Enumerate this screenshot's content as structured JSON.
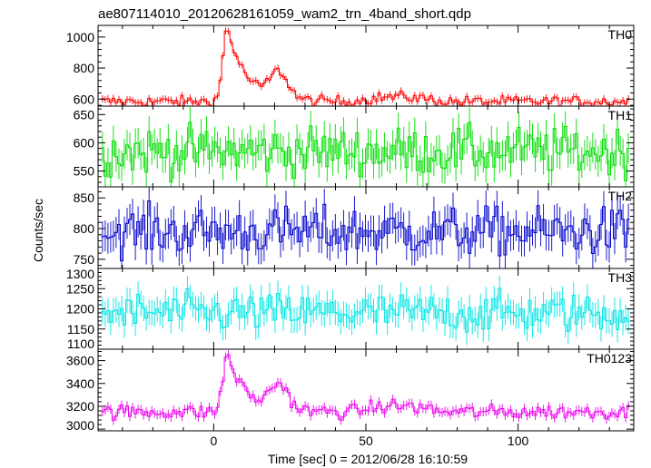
{
  "chart_data": {
    "type": "line",
    "title": "ae807114010_20120628161059_wam2_trn_4band_short.qdp",
    "xlabel": "Time [sec] 0 = 2012/06/28 16:10:59",
    "ylabel": "Counts/sec",
    "xlim": [
      -38,
      138
    ],
    "x_ticks": [
      0,
      50,
      100
    ],
    "x_tick_labels": [
      "0",
      "50",
      "100"
    ],
    "grid": false,
    "panels": [
      {
        "name": "TH0",
        "color": "#ff0000",
        "ylim": [
          555,
          1075
        ],
        "y_ticks": [
          600,
          800,
          1000
        ],
        "y_tick_labels": [
          "600",
          "800",
          "1000"
        ],
        "peak_time": 4,
        "peak_value": 1065,
        "secondary_peak_time": 21,
        "secondary_peak_value": 810,
        "baseline": 585,
        "noise_amplitude": 25
      },
      {
        "name": "TH1",
        "color": "#00dd00",
        "ylim": [
          522,
          665
        ],
        "y_ticks": [
          550,
          600,
          650
        ],
        "y_tick_labels": [
          "550",
          "600",
          "650"
        ],
        "baseline": 585,
        "noise_amplitude": 30
      },
      {
        "name": "TH2",
        "color": "#0000cc",
        "ylim": [
          735,
          868
        ],
        "y_ticks": [
          750,
          800,
          850
        ],
        "y_tick_labels": [
          "750",
          "800",
          "850"
        ],
        "baseline": 795,
        "noise_amplitude": 28
      },
      {
        "name": "TH3",
        "color": "#00e5e5",
        "ylim": [
          1100,
          1300
        ],
        "y_ticks": [
          1100,
          1150,
          1200,
          1250,
          1300
        ],
        "y_tick_labels": [
          "1100",
          "1150",
          "1200",
          "1250",
          "1300"
        ],
        "baseline": 1190,
        "noise_amplitude": 35
      },
      {
        "name": "TH0123",
        "color": "#ee00ee",
        "ylim": [
          2985,
          3700
        ],
        "y_ticks": [
          3000,
          3200,
          3400,
          3600
        ],
        "y_tick_labels": [
          "3000",
          "3200",
          "3400",
          "3600"
        ],
        "peak_time": 4,
        "peak_value": 3660,
        "secondary_peak_time": 21,
        "secondary_peak_value": 3450,
        "baseline": 3150,
        "noise_amplitude": 45
      }
    ]
  }
}
